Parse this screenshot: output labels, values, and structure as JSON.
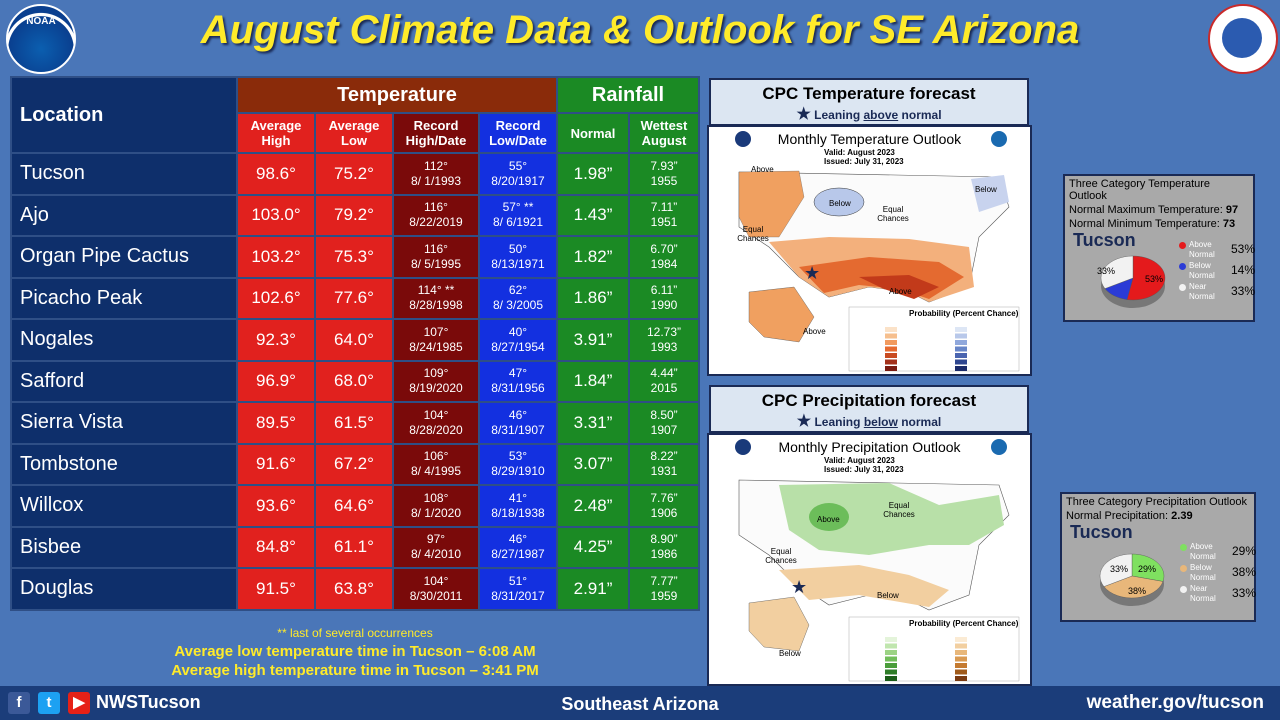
{
  "title": "August Climate Data & Outlook for SE Arizona",
  "logos": {
    "left": "NOAA",
    "right": "NATIONAL WEATHER SERVICE"
  },
  "table": {
    "location_header": "Location",
    "temperature_header": "Temperature",
    "rainfall_header": "Rainfall",
    "subheaders": {
      "avg_high": "Average High",
      "avg_low": "Average Low",
      "record_high": "Record High/Date",
      "record_low": "Record Low/Date",
      "normal": "Normal",
      "wettest": "Wettest August"
    },
    "rows": [
      {
        "location": "Tucson",
        "avg_high": "98.6°",
        "avg_low": "75.2°",
        "rec_high": "112°",
        "rec_high_date": "8/ 1/1993",
        "rec_low": "55°",
        "rec_low_date": "8/20/1917",
        "normal": "1.98”",
        "wettest": "7.93”",
        "wettest_year": "1955"
      },
      {
        "location": "Ajo",
        "avg_high": "103.0°",
        "avg_low": "79.2°",
        "rec_high": "116°",
        "rec_high_date": "8/22/2019",
        "rec_low": "57° **",
        "rec_low_date": "8/ 6/1921",
        "normal": "1.43”",
        "wettest": "7.11”",
        "wettest_year": "1951"
      },
      {
        "location": "Organ Pipe Cactus",
        "avg_high": "103.2°",
        "avg_low": "75.3°",
        "rec_high": "116°",
        "rec_high_date": "8/ 5/1995",
        "rec_low": "50°",
        "rec_low_date": "8/13/1971",
        "normal": "1.82”",
        "wettest": "6.70”",
        "wettest_year": "1984"
      },
      {
        "location": "Picacho Peak",
        "avg_high": "102.6°",
        "avg_low": "77.6°",
        "rec_high": "114° **",
        "rec_high_date": "8/28/1998",
        "rec_low": "62°",
        "rec_low_date": "8/ 3/2005",
        "normal": "1.86”",
        "wettest": "6.11”",
        "wettest_year": "1990"
      },
      {
        "location": "Nogales",
        "avg_high": "92.3°",
        "avg_low": "64.0°",
        "rec_high": "107°",
        "rec_high_date": "8/24/1985",
        "rec_low": "40°",
        "rec_low_date": "8/27/1954",
        "normal": "3.91”",
        "wettest": "12.73”",
        "wettest_year": "1993"
      },
      {
        "location": "Safford",
        "avg_high": "96.9°",
        "avg_low": "68.0°",
        "rec_high": "109°",
        "rec_high_date": "8/19/2020",
        "rec_low": "47°",
        "rec_low_date": "8/31/1956",
        "normal": "1.84”",
        "wettest": "4.44”",
        "wettest_year": "2015"
      },
      {
        "location": "Sierra Vista",
        "avg_high": "89.5°",
        "avg_low": "61.5°",
        "rec_high": "104°",
        "rec_high_date": "8/28/2020",
        "rec_low": "46°",
        "rec_low_date": "8/31/1907",
        "normal": "3.31”",
        "wettest": "8.50”",
        "wettest_year": "1907"
      },
      {
        "location": "Tombstone",
        "avg_high": "91.6°",
        "avg_low": "67.2°",
        "rec_high": "106°",
        "rec_high_date": "8/ 4/1995",
        "rec_low": "53°",
        "rec_low_date": "8/29/1910",
        "normal": "3.07”",
        "wettest": "8.22”",
        "wettest_year": "1931"
      },
      {
        "location": "Willcox",
        "avg_high": "93.6°",
        "avg_low": "64.6°",
        "rec_high": "108°",
        "rec_high_date": "8/ 1/2020",
        "rec_low": "41°",
        "rec_low_date": "8/18/1938",
        "normal": "2.48”",
        "wettest": "7.76”",
        "wettest_year": "1906"
      },
      {
        "location": "Bisbee",
        "avg_high": "84.8°",
        "avg_low": "61.1°",
        "rec_high": "97°",
        "rec_high_date": "8/ 4/2010",
        "rec_low": "46°",
        "rec_low_date": "8/27/1987",
        "normal": "4.25”",
        "wettest": "8.90”",
        "wettest_year": "1986"
      },
      {
        "location": "Douglas",
        "avg_high": "91.5°",
        "avg_low": "63.8°",
        "rec_high": "104°",
        "rec_high_date": "8/30/2011",
        "rec_low": "51°",
        "rec_low_date": "8/31/2017",
        "normal": "2.91”",
        "wettest": "7.77”",
        "wettest_year": "1959"
      }
    ]
  },
  "notes": {
    "footnote": "** last of several occurrences",
    "low_time": "Average low temperature time in Tucson – 6:08 AM",
    "high_time": "Average high temperature time in Tucson – 3:41 PM"
  },
  "temp_forecast": {
    "header": "CPC Temperature forecast",
    "leaning_prefix": "Leaning",
    "leaning_word": "above",
    "leaning_suffix": "normal",
    "map_title": "Monthly Temperature Outlook",
    "valid": "Valid:  August 2023",
    "issued": "Issued:  July 31, 2023",
    "labels": {
      "above1": "Above",
      "above2": "Above",
      "above3": "Above",
      "below1": "Below",
      "below2": "Below",
      "equal1": "Equal Chances",
      "equal2": "Equal Chances"
    },
    "legend_title": "Probability (Percent Chance)"
  },
  "precip_forecast": {
    "header": "CPC Precipitation forecast",
    "leaning_prefix": "Leaning",
    "leaning_word": "below",
    "leaning_suffix": "normal",
    "map_title": "Monthly Precipitation Outlook",
    "valid": "Valid:  August 2023",
    "issued": "Issued:  July 31, 2023",
    "labels": {
      "above1": "Above",
      "below1": "Below",
      "below2": "Below",
      "equal1": "Equal Chances",
      "equal2": "Equal Chances"
    },
    "legend_title": "Probability (Percent Chance)"
  },
  "temp_pie": {
    "title": "Three Category Temperature Outlook",
    "line1_label": "Normal Maximum Temperature:",
    "line1_value": "97",
    "line2_label": "Normal Minimum Temperature:",
    "line2_value": "73",
    "city": "Tucson",
    "colors": {
      "above": "#e41a1c",
      "below": "#2b3bd6",
      "near": "#f2f2f2"
    },
    "legend": [
      {
        "label": "Above Normal",
        "pct": "53%",
        "value": 53
      },
      {
        "label": "Below Normal",
        "pct": "14%",
        "value": 14
      },
      {
        "label": "Near Normal",
        "pct": "33%",
        "value": 33
      }
    ],
    "slice_labels": {
      "above": "53%",
      "near": "33%"
    }
  },
  "precip_pie": {
    "title": "Three Category Precipitation Outlook",
    "line1_label": "Normal Precipitation:",
    "line1_value": "2.39",
    "city": "Tucson",
    "colors": {
      "above": "#7fe060",
      "below": "#e8b77a",
      "near": "#f2f2f2"
    },
    "legend": [
      {
        "label": "Above Normal",
        "pct": "29%",
        "value": 29
      },
      {
        "label": "Below Normal",
        "pct": "38%",
        "value": 38
      },
      {
        "label": "Near Normal",
        "pct": "33%",
        "value": 33
      }
    ],
    "slice_labels": {
      "above": "29%",
      "below": "38%",
      "near": "33%"
    }
  },
  "footer": {
    "handle": "NWSTucson",
    "region": "Southeast Arizona",
    "site": "weather.gov/tucson"
  }
}
